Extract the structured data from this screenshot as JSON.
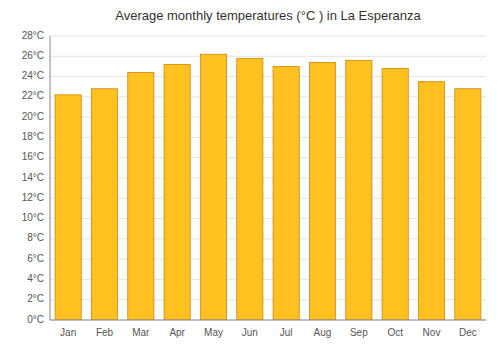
{
  "chart_data": {
    "type": "bar",
    "title": "Average monthly temperatures (°C ) in La Esperanza",
    "categories": [
      "Jan",
      "Feb",
      "Mar",
      "Apr",
      "May",
      "Jun",
      "Jul",
      "Aug",
      "Sep",
      "Oct",
      "Nov",
      "Dec"
    ],
    "values": [
      22.2,
      22.8,
      24.4,
      25.2,
      26.2,
      25.8,
      25.0,
      25.4,
      25.6,
      24.8,
      23.5,
      22.8
    ],
    "color": "#FFC020",
    "ylim": [
      0,
      28
    ],
    "yticks": [
      {
        "value": 0,
        "label": "0°C"
      },
      {
        "value": 2,
        "label": "2°C"
      },
      {
        "value": 4,
        "label": "4°C"
      },
      {
        "value": 6,
        "label": "6°C"
      },
      {
        "value": 8,
        "label": "8°C"
      },
      {
        "value": 10,
        "label": "10°C"
      },
      {
        "value": 12,
        "label": "12°C"
      },
      {
        "value": 14,
        "label": "14°C"
      },
      {
        "value": 16,
        "label": "16°C"
      },
      {
        "value": 18,
        "label": "18°C"
      },
      {
        "value": 20,
        "label": "20°C"
      },
      {
        "value": 22,
        "label": "22°C"
      },
      {
        "value": 24,
        "label": "24°C"
      },
      {
        "value": 26,
        "label": "26°C"
      },
      {
        "value": 28,
        "label": "28°C"
      }
    ],
    "grid": true
  }
}
